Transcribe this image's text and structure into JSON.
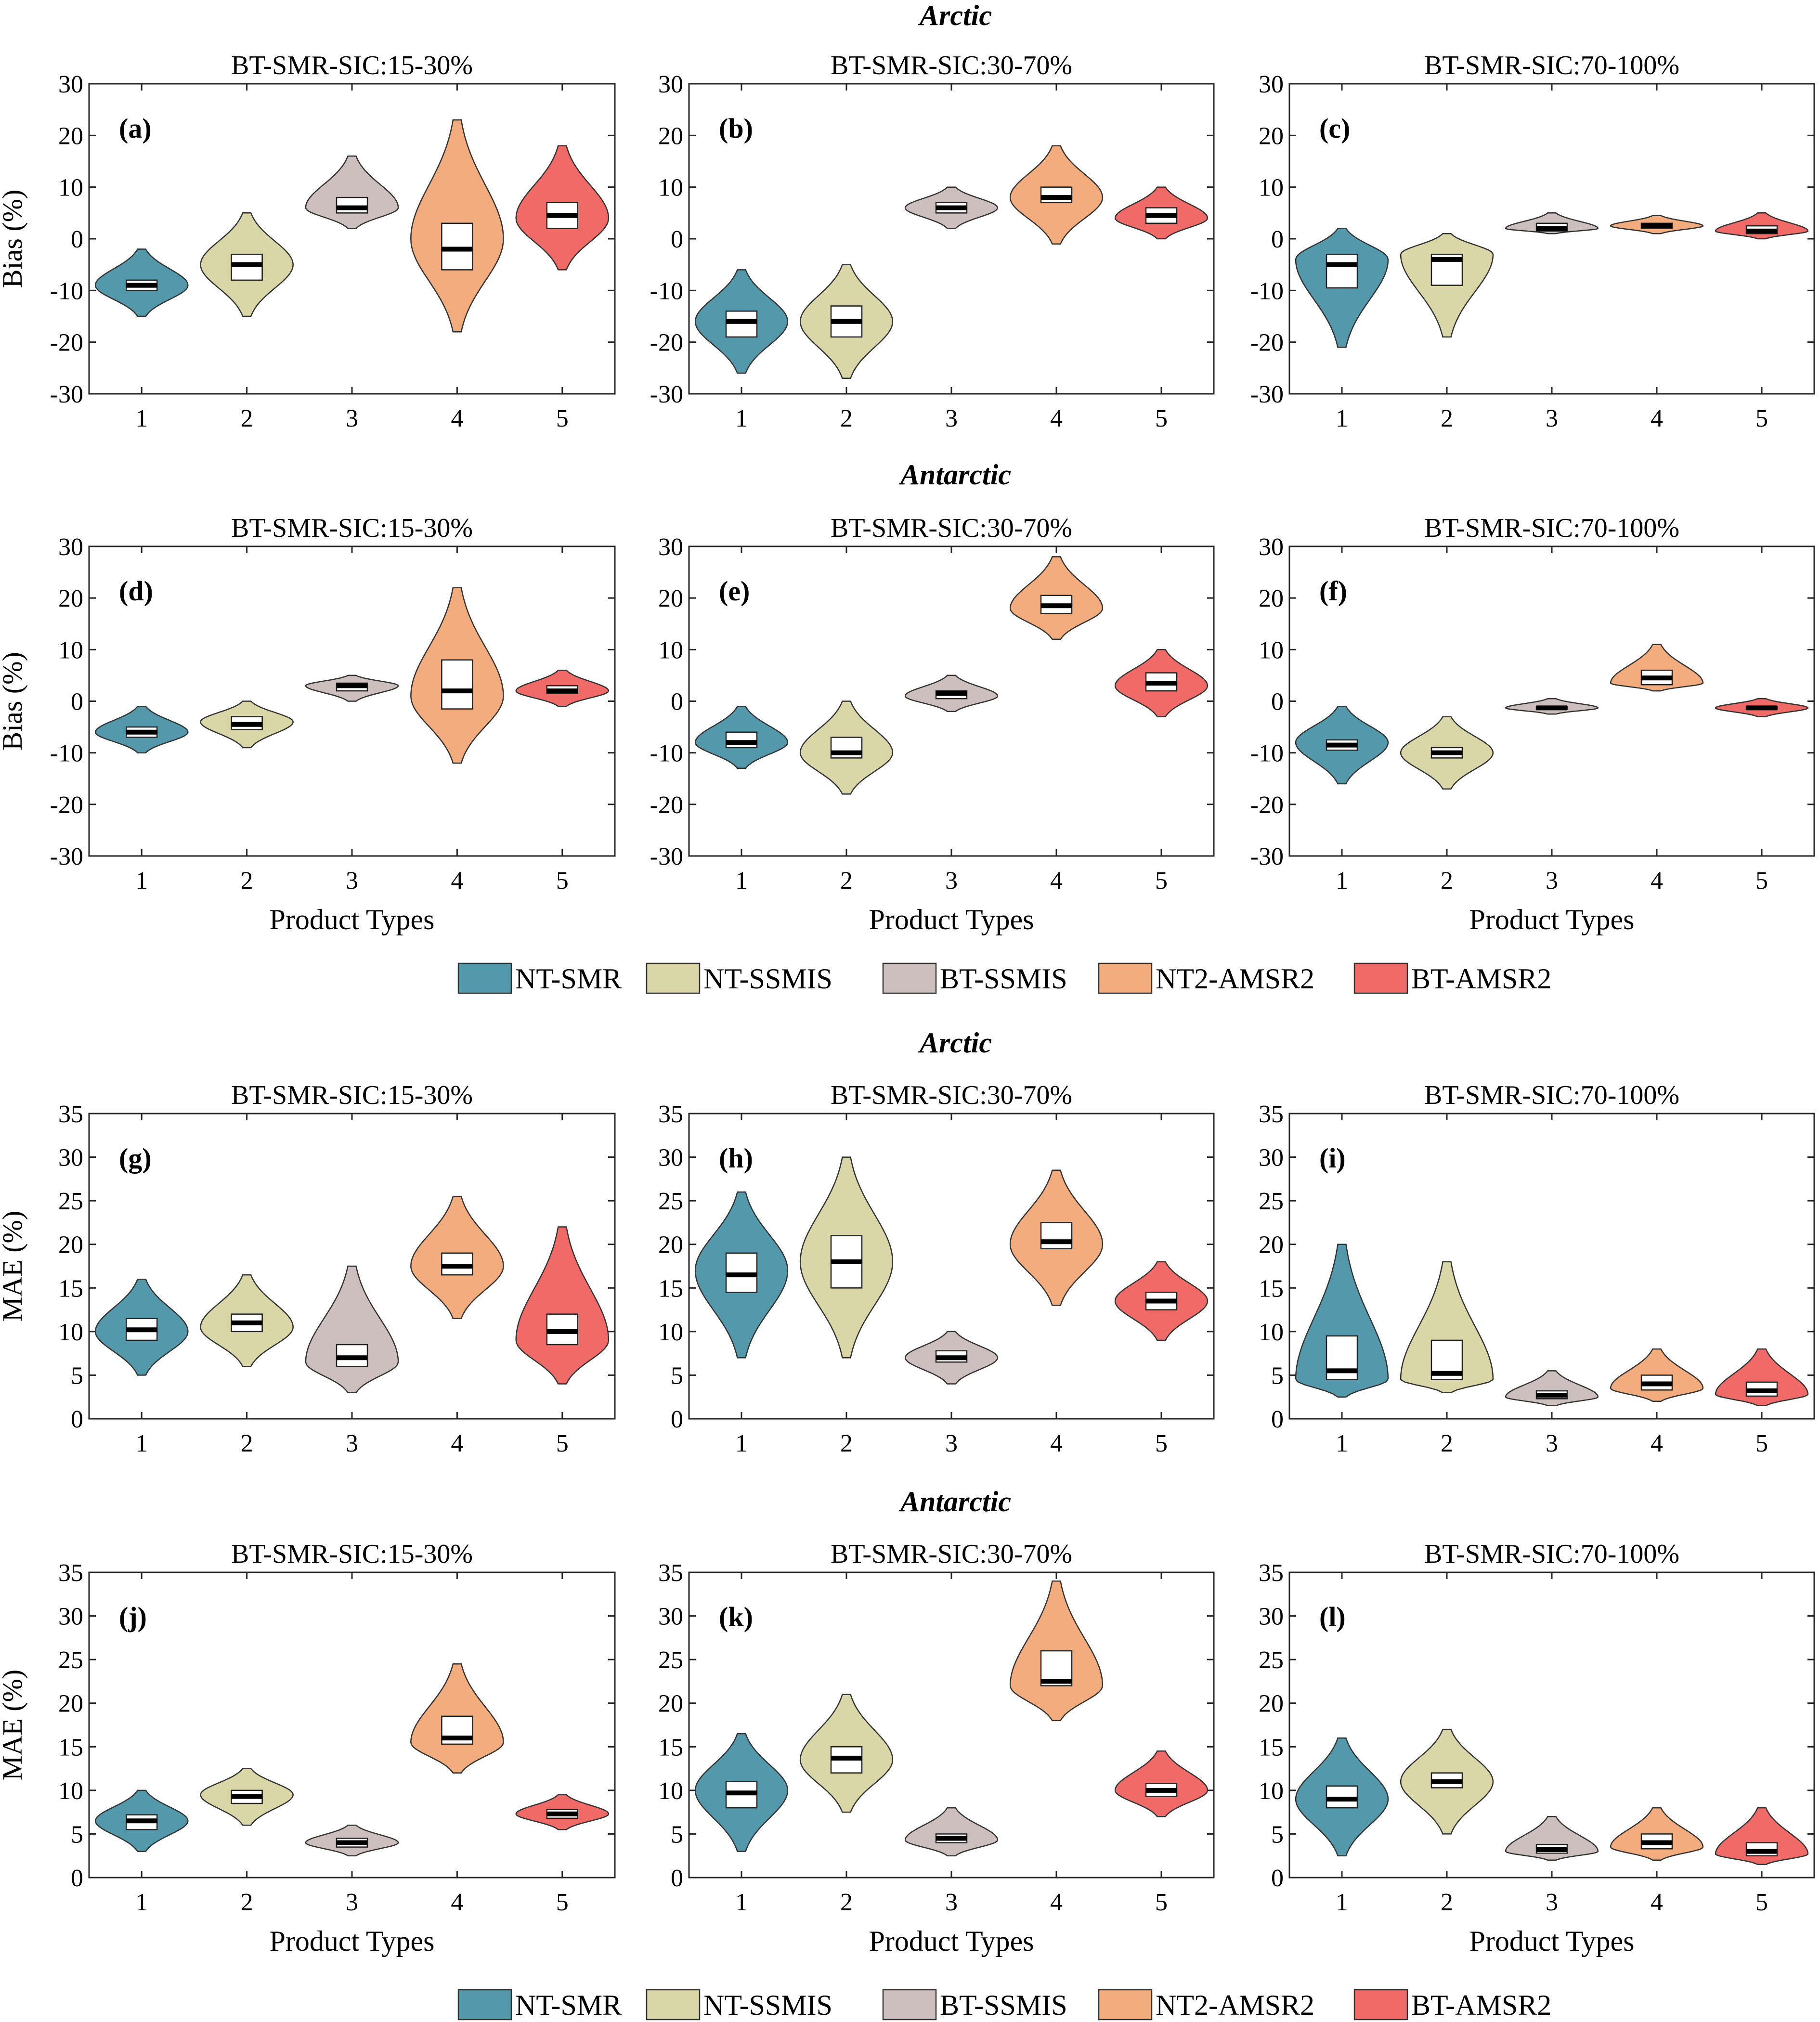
{
  "colors": {
    "NT-SMR": "#5499ab",
    "NT-SSMIS": "#d9d6a8",
    "BT-SSMIS": "#ccbfbe",
    "NT2-AMSR2": "#f2ac7d",
    "BT-AMSR2": "#f06b67"
  },
  "legend": {
    "items": [
      {
        "key": "NT-SMR",
        "label": "NT-SMR"
      },
      {
        "key": "NT-SSMIS",
        "label": "NT-SSMIS"
      },
      {
        "key": "BT-SSMIS",
        "label": "BT-SSMIS"
      },
      {
        "key": "NT2-AMSR2",
        "label": "NT2-AMSR2"
      },
      {
        "key": "BT-AMSR2",
        "label": "BT-AMSR2"
      }
    ]
  },
  "section_titles": {
    "bias_arctic": "Arctic",
    "bias_antarctic": "Antarctic",
    "mae_arctic": "Arctic",
    "mae_antarctic": "Antarctic"
  },
  "chart_data": [
    {
      "type": "violin",
      "panel_label": "(a)",
      "title": "BT-SMR-SIC:15-30%",
      "ylabel": "Bias (%)",
      "xlabel": "",
      "categories": [
        "1",
        "2",
        "3",
        "4",
        "5"
      ],
      "ylim": [
        -30,
        30
      ],
      "yticks": [
        -30,
        -20,
        -10,
        0,
        10,
        20,
        30
      ],
      "violins": [
        {
          "min": -15,
          "max": -2,
          "mode": -9,
          "q1": -10,
          "median": -9,
          "q3": -8
        },
        {
          "min": -15,
          "max": 5,
          "mode": -5,
          "q1": -8,
          "median": -5,
          "q3": -3
        },
        {
          "min": 2,
          "max": 16,
          "mode": 6,
          "q1": 5,
          "median": 6,
          "q3": 8
        },
        {
          "min": -18,
          "max": 23,
          "mode": 0,
          "q1": -6,
          "median": -2,
          "q3": 3
        },
        {
          "min": -6,
          "max": 18,
          "mode": 4,
          "q1": 2,
          "median": 4.5,
          "q3": 7
        }
      ]
    },
    {
      "type": "violin",
      "panel_label": "(b)",
      "title": "BT-SMR-SIC:30-70%",
      "ylabel": "",
      "xlabel": "",
      "categories": [
        "1",
        "2",
        "3",
        "4",
        "5"
      ],
      "ylim": [
        -30,
        30
      ],
      "yticks": [
        -30,
        -20,
        -10,
        0,
        10,
        20,
        30
      ],
      "violins": [
        {
          "min": -26,
          "max": -6,
          "mode": -16,
          "q1": -19,
          "median": -16,
          "q3": -14
        },
        {
          "min": -27,
          "max": -5,
          "mode": -16,
          "q1": -19,
          "median": -16,
          "q3": -13
        },
        {
          "min": 2,
          "max": 10,
          "mode": 6,
          "q1": 5,
          "median": 6,
          "q3": 7
        },
        {
          "min": -1,
          "max": 18,
          "mode": 8,
          "q1": 7,
          "median": 8,
          "q3": 10
        },
        {
          "min": 0,
          "max": 10,
          "mode": 4,
          "q1": 3,
          "median": 4.5,
          "q3": 6
        }
      ]
    },
    {
      "type": "violin",
      "panel_label": "(c)",
      "title": "BT-SMR-SIC:70-100%",
      "ylabel": "",
      "xlabel": "",
      "categories": [
        "1",
        "2",
        "3",
        "4",
        "5"
      ],
      "ylim": [
        -30,
        30
      ],
      "yticks": [
        -30,
        -20,
        -10,
        0,
        10,
        20,
        30
      ],
      "violins": [
        {
          "min": -21,
          "max": 2,
          "mode": -4,
          "q1": -9.5,
          "median": -5,
          "q3": -3
        },
        {
          "min": -19,
          "max": 1,
          "mode": -3,
          "q1": -9,
          "median": -4,
          "q3": -3
        },
        {
          "min": 1,
          "max": 5,
          "mode": 2,
          "q1": 1.5,
          "median": 2,
          "q3": 3
        },
        {
          "min": 1,
          "max": 4.5,
          "mode": 2.5,
          "q1": 2,
          "median": 2.5,
          "q3": 3
        },
        {
          "min": 0,
          "max": 5,
          "mode": 1.5,
          "q1": 1,
          "median": 1.5,
          "q3": 2.5
        }
      ]
    },
    {
      "type": "violin",
      "panel_label": "(d)",
      "title": "BT-SMR-SIC:15-30%",
      "ylabel": "Bias (%)",
      "xlabel": "Product Types",
      "categories": [
        "1",
        "2",
        "3",
        "4",
        "5"
      ],
      "ylim": [
        -30,
        30
      ],
      "yticks": [
        -30,
        -20,
        -10,
        0,
        10,
        20,
        30
      ],
      "violins": [
        {
          "min": -10,
          "max": -1,
          "mode": -6,
          "q1": -7,
          "median": -6,
          "q3": -5
        },
        {
          "min": -9,
          "max": 0,
          "mode": -4,
          "q1": -5.5,
          "median": -4.5,
          "q3": -3
        },
        {
          "min": 0,
          "max": 5,
          "mode": 3,
          "q1": 2,
          "median": 3,
          "q3": 3.5
        },
        {
          "min": -12,
          "max": 22,
          "mode": 1,
          "q1": -1.5,
          "median": 2,
          "q3": 8
        },
        {
          "min": -1,
          "max": 6,
          "mode": 2,
          "q1": 1.5,
          "median": 2,
          "q3": 3
        }
      ]
    },
    {
      "type": "violin",
      "panel_label": "(e)",
      "title": "BT-SMR-SIC:30-70%",
      "ylabel": "",
      "xlabel": "Product Types",
      "categories": [
        "1",
        "2",
        "3",
        "4",
        "5"
      ],
      "ylim": [
        -30,
        30
      ],
      "yticks": [
        -30,
        -20,
        -10,
        0,
        10,
        20,
        30
      ],
      "violins": [
        {
          "min": -13,
          "max": -1,
          "mode": -8,
          "q1": -9,
          "median": -8,
          "q3": -6
        },
        {
          "min": -18,
          "max": 0,
          "mode": -10,
          "q1": -11,
          "median": -10,
          "q3": -7
        },
        {
          "min": -2,
          "max": 5,
          "mode": 1,
          "q1": 0.5,
          "median": 1.5,
          "q3": 2
        },
        {
          "min": 12,
          "max": 28,
          "mode": 18,
          "q1": 17,
          "median": 18.5,
          "q3": 20.5
        },
        {
          "min": -3,
          "max": 10,
          "mode": 3,
          "q1": 2,
          "median": 3.5,
          "q3": 5.5
        }
      ]
    },
    {
      "type": "violin",
      "panel_label": "(f)",
      "title": "BT-SMR-SIC:70-100%",
      "ylabel": "",
      "xlabel": "Product Types",
      "categories": [
        "1",
        "2",
        "3",
        "4",
        "5"
      ],
      "ylim": [
        -30,
        30
      ],
      "yticks": [
        -30,
        -20,
        -10,
        0,
        10,
        20,
        30
      ],
      "violins": [
        {
          "min": -16,
          "max": -1,
          "mode": -8,
          "q1": -9.5,
          "median": -8.5,
          "q3": -7.5
        },
        {
          "min": -17,
          "max": -3,
          "mode": -10,
          "q1": -11,
          "median": -10,
          "q3": -9
        },
        {
          "min": -2.5,
          "max": 0.5,
          "mode": -1.3,
          "q1": -1.6,
          "median": -1.3,
          "q3": -1
        },
        {
          "min": 2,
          "max": 11,
          "mode": 3.5,
          "q1": 3.2,
          "median": 4.5,
          "q3": 6
        },
        {
          "min": -3,
          "max": 0.5,
          "mode": -1.3,
          "q1": -1.6,
          "median": -1.3,
          "q3": -1
        }
      ]
    },
    {
      "type": "violin",
      "panel_label": "(g)",
      "title": "BT-SMR-SIC:15-30%",
      "ylabel": "MAE (%)",
      "xlabel": "",
      "categories": [
        "1",
        "2",
        "3",
        "4",
        "5"
      ],
      "ylim": [
        0,
        35
      ],
      "yticks": [
        0,
        5,
        10,
        15,
        20,
        25,
        30,
        35
      ],
      "violins": [
        {
          "min": 5,
          "max": 16,
          "mode": 10,
          "q1": 9,
          "median": 10.2,
          "q3": 11.5
        },
        {
          "min": 6,
          "max": 16.5,
          "mode": 10.5,
          "q1": 10,
          "median": 11,
          "q3": 12
        },
        {
          "min": 3,
          "max": 17.5,
          "mode": 6.5,
          "q1": 6,
          "median": 7,
          "q3": 8.5
        },
        {
          "min": 11.5,
          "max": 25.5,
          "mode": 17.5,
          "q1": 16.5,
          "median": 17.5,
          "q3": 19
        },
        {
          "min": 4,
          "max": 22,
          "mode": 9,
          "q1": 8.5,
          "median": 10,
          "q3": 12
        }
      ]
    },
    {
      "type": "violin",
      "panel_label": "(h)",
      "title": "BT-SMR-SIC:30-70%",
      "ylabel": "",
      "xlabel": "",
      "categories": [
        "1",
        "2",
        "3",
        "4",
        "5"
      ],
      "ylim": [
        0,
        35
      ],
      "yticks": [
        0,
        5,
        10,
        15,
        20,
        25,
        30,
        35
      ],
      "violins": [
        {
          "min": 7,
          "max": 26,
          "mode": 17,
          "q1": 14.5,
          "median": 16.5,
          "q3": 19
        },
        {
          "min": 7,
          "max": 30,
          "mode": 18,
          "q1": 15,
          "median": 18,
          "q3": 21
        },
        {
          "min": 4,
          "max": 10,
          "mode": 7,
          "q1": 6.5,
          "median": 7,
          "q3": 7.8
        },
        {
          "min": 13,
          "max": 28.5,
          "mode": 20,
          "q1": 19.5,
          "median": 20.3,
          "q3": 22.5
        },
        {
          "min": 9,
          "max": 18,
          "mode": 13.5,
          "q1": 12.5,
          "median": 13.5,
          "q3": 14.5
        }
      ]
    },
    {
      "type": "violin",
      "panel_label": "(i)",
      "title": "BT-SMR-SIC:70-100%",
      "ylabel": "",
      "xlabel": "",
      "categories": [
        "1",
        "2",
        "3",
        "4",
        "5"
      ],
      "ylim": [
        0,
        35
      ],
      "yticks": [
        0,
        5,
        10,
        15,
        20,
        25,
        30,
        35
      ],
      "violins": [
        {
          "min": 2.5,
          "max": 20,
          "mode": 4.5,
          "q1": 4.5,
          "median": 5.5,
          "q3": 9.5
        },
        {
          "min": 3,
          "max": 18,
          "mode": 4.5,
          "q1": 4.5,
          "median": 5.2,
          "q3": 9
        },
        {
          "min": 1.5,
          "max": 5.5,
          "mode": 2.5,
          "q1": 2.3,
          "median": 2.7,
          "q3": 3.2
        },
        {
          "min": 2,
          "max": 8,
          "mode": 3.5,
          "q1": 3.3,
          "median": 4,
          "q3": 5
        },
        {
          "min": 1.5,
          "max": 8,
          "mode": 2.8,
          "q1": 2.6,
          "median": 3.2,
          "q3": 4.2
        }
      ]
    },
    {
      "type": "violin",
      "panel_label": "(j)",
      "title": "BT-SMR-SIC:15-30%",
      "ylabel": "MAE (%)",
      "xlabel": "Product Types",
      "categories": [
        "1",
        "2",
        "3",
        "4",
        "5"
      ],
      "ylim": [
        0,
        35
      ],
      "yticks": [
        0,
        5,
        10,
        15,
        20,
        25,
        30,
        35
      ],
      "violins": [
        {
          "min": 3,
          "max": 10,
          "mode": 6.5,
          "q1": 5.5,
          "median": 6.5,
          "q3": 7.2
        },
        {
          "min": 6,
          "max": 12.5,
          "mode": 9.5,
          "q1": 8.5,
          "median": 9.3,
          "q3": 10
        },
        {
          "min": 2.5,
          "max": 6,
          "mode": 4,
          "q1": 3.5,
          "median": 4,
          "q3": 4.5
        },
        {
          "min": 12,
          "max": 24.5,
          "mode": 15.5,
          "q1": 15.3,
          "median": 16,
          "q3": 18.5
        },
        {
          "min": 5.5,
          "max": 9.5,
          "mode": 7.3,
          "q1": 6.8,
          "median": 7.3,
          "q3": 7.8
        }
      ]
    },
    {
      "type": "violin",
      "panel_label": "(k)",
      "title": "BT-SMR-SIC:30-70%",
      "ylabel": "",
      "xlabel": "Product Types",
      "categories": [
        "1",
        "2",
        "3",
        "4",
        "5"
      ],
      "ylim": [
        0,
        35
      ],
      "yticks": [
        0,
        5,
        10,
        15,
        20,
        25,
        30,
        35
      ],
      "violins": [
        {
          "min": 3,
          "max": 16.5,
          "mode": 10,
          "q1": 8,
          "median": 9.7,
          "q3": 11
        },
        {
          "min": 7.5,
          "max": 21,
          "mode": 13.5,
          "q1": 12,
          "median": 13.7,
          "q3": 15
        },
        {
          "min": 2.5,
          "max": 8,
          "mode": 4.3,
          "q1": 4,
          "median": 4.5,
          "q3": 5
        },
        {
          "min": 18,
          "max": 34,
          "mode": 22,
          "q1": 22,
          "median": 22.5,
          "q3": 26
        },
        {
          "min": 7,
          "max": 14.5,
          "mode": 10,
          "q1": 9.3,
          "median": 10,
          "q3": 10.8
        }
      ]
    },
    {
      "type": "violin",
      "panel_label": "(l)",
      "title": "BT-SMR-SIC:70-100%",
      "ylabel": "",
      "xlabel": "Product Types",
      "categories": [
        "1",
        "2",
        "3",
        "4",
        "5"
      ],
      "ylim": [
        0,
        35
      ],
      "yticks": [
        0,
        5,
        10,
        15,
        20,
        25,
        30,
        35
      ],
      "violins": [
        {
          "min": 2.5,
          "max": 16,
          "mode": 9,
          "q1": 8,
          "median": 9,
          "q3": 10.5
        },
        {
          "min": 5,
          "max": 17,
          "mode": 11,
          "q1": 10.3,
          "median": 11,
          "q3": 12
        },
        {
          "min": 2,
          "max": 7,
          "mode": 3,
          "q1": 2.8,
          "median": 3.2,
          "q3": 3.8
        },
        {
          "min": 2,
          "max": 8,
          "mode": 3.5,
          "q1": 3.3,
          "median": 4,
          "q3": 5
        },
        {
          "min": 1.5,
          "max": 8,
          "mode": 2.7,
          "q1": 2.5,
          "median": 3,
          "q3": 4
        }
      ]
    }
  ]
}
